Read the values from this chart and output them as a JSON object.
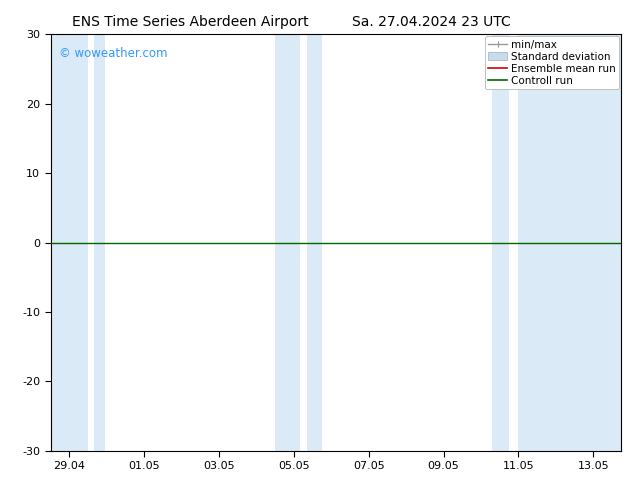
{
  "title_left": "ENS Time Series Aberdeen Airport",
  "title_right": "Sa. 27.04.2024 23 UTC",
  "watermark": "© woweather.com",
  "watermark_color": "#3399ff",
  "ylim": [
    -30,
    30
  ],
  "yticks": [
    -30,
    -20,
    -10,
    0,
    10,
    20,
    30
  ],
  "x_tick_labels": [
    "29.04",
    "01.05",
    "03.05",
    "05.05",
    "07.05",
    "09.05",
    "11.05",
    "13.05"
  ],
  "x_tick_positions": [
    0,
    2,
    4,
    6,
    8,
    10,
    12,
    14
  ],
  "xlim": [
    -0.5,
    14.75
  ],
  "bands": [
    [
      -0.5,
      0.5
    ],
    [
      0.65,
      0.95
    ],
    [
      5.5,
      6.15
    ],
    [
      6.35,
      6.75
    ],
    [
      11.3,
      11.75
    ],
    [
      12.0,
      14.75
    ]
  ],
  "band_color": "#daeaf7",
  "zero_line_color": "#006600",
  "ensemble_mean_color": "#cc0000",
  "control_run_color": "#006600",
  "minmax_color": "#999999",
  "std_dev_color": "#c5ddf0",
  "background_color": "#ffffff",
  "legend_labels": [
    "min/max",
    "Standard deviation",
    "Ensemble mean run",
    "Controll run"
  ],
  "title_fontsize": 10,
  "axis_fontsize": 8,
  "legend_fontsize": 7.5
}
